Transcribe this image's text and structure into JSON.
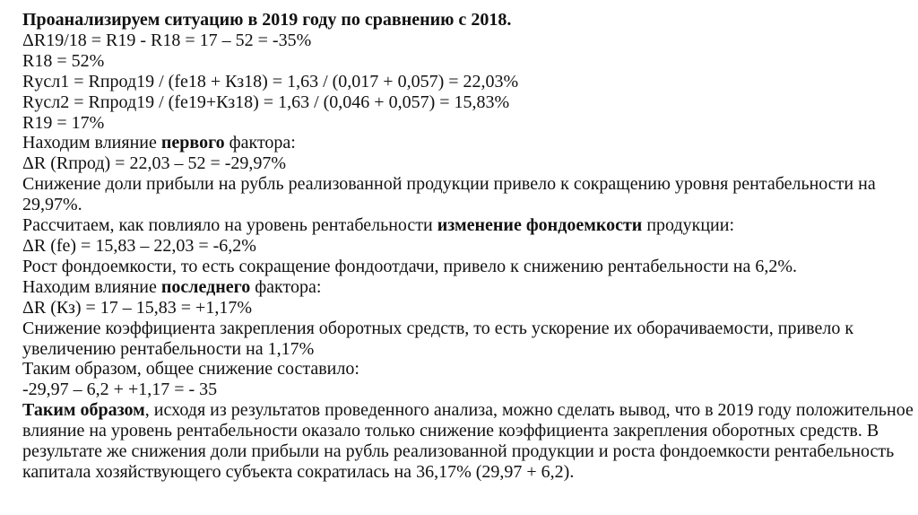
{
  "lines": [
    [
      {
        "t": "Проанализируем ситуацию в 2019 году по сравнению с 2018.",
        "b": true
      }
    ],
    [
      {
        "t": "ΔR19/18 = R19 - R18 = 17 – 52 = -35%",
        "b": false
      }
    ],
    [
      {
        "t": "R18 = 52%",
        "b": false
      }
    ],
    [
      {
        "t": "Rусл1 = Rпрод19 / (fe18 + Кз18) = 1,63 / (0,017 + 0,057) = 22,03%",
        "b": false
      }
    ],
    [
      {
        "t": "Rусл2 = Rпрод19 / (fe19+Кз18) = 1,63 / (0,046 + 0,057) = 15,83%",
        "b": false
      }
    ],
    [
      {
        "t": "R19 = 17%",
        "b": false
      }
    ],
    [
      {
        "t": "Находим влияние ",
        "b": false
      },
      {
        "t": "первого",
        "b": true
      },
      {
        "t": " фактора:",
        "b": false
      }
    ],
    [
      {
        "t": "ΔR (Rпрод) = 22,03 – 52 = -29,97%",
        "b": false
      }
    ],
    [
      {
        "t": "Снижение доли прибыли на рубль реализованной продукции привело к сокращению уровня рентабельности на",
        "b": false
      }
    ],
    [
      {
        "t": "29,97%.",
        "b": false
      }
    ],
    [
      {
        "t": "Рассчитаем, как  повлияло на уровень рентабельности ",
        "b": false
      },
      {
        "t": "изменение фондоемкости",
        "b": true
      },
      {
        "t": " продукции:",
        "b": false
      }
    ],
    [
      {
        "t": "ΔR (fe) = 15,83 – 22,03 = -6,2%",
        "b": false
      }
    ],
    [
      {
        "t": "Рост фондоемкости, то есть сокращение фондоотдачи, привело к снижению рентабельности на 6,2%.",
        "b": false
      }
    ],
    [
      {
        "t": "Находим влияние ",
        "b": false
      },
      {
        "t": "последнего",
        "b": true
      },
      {
        "t": " фактора:",
        "b": false
      }
    ],
    [
      {
        "t": "ΔR (Кз) = 17 – 15,83 = +1,17%",
        "b": false
      }
    ],
    [
      {
        "t": "Снижение коэффициента закрепления оборотных средств, то есть ускорение их оборачиваемости,  привело к",
        "b": false
      }
    ],
    [
      {
        "t": "увеличению рентабельности на 1,17%",
        "b": false
      }
    ],
    [
      {
        "t": "Таким образом, общее снижение составило:",
        "b": false
      }
    ],
    [
      {
        "t": "-29,97 – 6,2 + +1,17 = - 35",
        "b": false
      }
    ],
    [
      {
        "t": "Таким образом",
        "b": true
      },
      {
        "t": ", исходя из результатов проведенного анализа, можно сделать вывод, что в 2019 году положительное",
        "b": false
      }
    ],
    [
      {
        "t": "влияние на уровень рентабельности оказало только снижение коэффициента закрепления оборотных средств. В",
        "b": false
      }
    ],
    [
      {
        "t": "результате же снижения доли прибыли на рубль реализованной продукции и роста фондоемкости рентабельность",
        "b": false
      }
    ],
    [
      {
        "t": "капитала хозяйствующего субъекта сократилась на 36,17% (29,97 + 6,2).",
        "b": false
      }
    ]
  ]
}
